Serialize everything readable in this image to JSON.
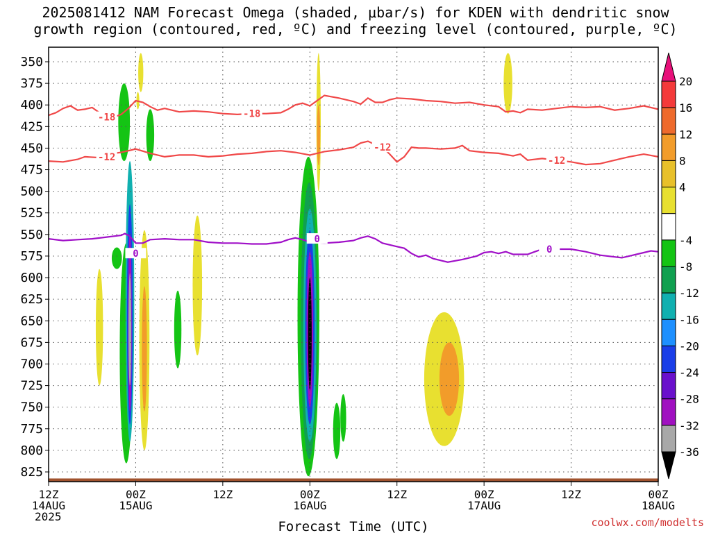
{
  "chart_data": {
    "type": "heatmap",
    "title_lines": [
      "2025081412 NAM Forecast Omega (shaded, μbar/s) for KDEN with dendritic snow",
      "growth region (contoured, red, ºC) and freezing level (contoured, purple, ºC)"
    ],
    "xlabel": "Forecast Time (UTC)",
    "ylabel": "",
    "y_axis": {
      "name": "pressure",
      "ylim": [
        835,
        340
      ],
      "ticks": [
        350,
        375,
        400,
        425,
        450,
        475,
        500,
        525,
        550,
        575,
        600,
        625,
        650,
        675,
        700,
        725,
        750,
        775,
        800,
        825
      ]
    },
    "x_axis": {
      "xlim_hours": [
        0,
        84
      ],
      "ticks": [
        {
          "hour": 0,
          "lines": [
            "12Z",
            "14AUG",
            "2025"
          ]
        },
        {
          "hour": 12,
          "lines": [
            "00Z",
            "15AUG"
          ]
        },
        {
          "hour": 24,
          "lines": [
            "12Z"
          ]
        },
        {
          "hour": 36,
          "lines": [
            "00Z",
            "16AUG"
          ]
        },
        {
          "hour": 48,
          "lines": [
            "12Z"
          ]
        },
        {
          "hour": 60,
          "lines": [
            "00Z",
            "17AUG"
          ]
        },
        {
          "hour": 72,
          "lines": [
            "12Z"
          ]
        },
        {
          "hour": 84,
          "lines": [
            "00Z",
            "18AUG"
          ]
        }
      ],
      "grid": true
    },
    "colorbar": {
      "labels": [
        "20",
        "16",
        "12",
        "8",
        "4",
        "-4",
        "-8",
        "-12",
        "-16",
        "-20",
        "-24",
        "-28",
        "-32",
        "-36"
      ],
      "colors": [
        "#e8107a",
        "#f43a3a",
        "#ee6a2c",
        "#f29c2a",
        "#e8c02a",
        "#e8e030",
        "#ffffff",
        "#14c414",
        "#10a050",
        "#10b0b0",
        "#1e90ff",
        "#1a3ee8",
        "#6a10cc",
        "#a010c0",
        "#a8a8a8",
        "#000000"
      ]
    },
    "contours": [
      {
        "label": "-18",
        "color": "#f04848",
        "points": [
          [
            0,
            412
          ],
          [
            1,
            409
          ],
          [
            2,
            404
          ],
          [
            3,
            401
          ],
          [
            4,
            406
          ],
          [
            5,
            405
          ],
          [
            6,
            403
          ],
          [
            7,
            409
          ],
          [
            8,
            413
          ],
          [
            9,
            414
          ],
          [
            10,
            411
          ],
          [
            11,
            404
          ],
          [
            12,
            395
          ],
          [
            13,
            397
          ],
          [
            14,
            402
          ],
          [
            15,
            406
          ],
          [
            16,
            404
          ],
          [
            18,
            408
          ],
          [
            20,
            407
          ],
          [
            22,
            408
          ],
          [
            24,
            410
          ],
          [
            26,
            411
          ],
          [
            28,
            410
          ],
          [
            30,
            410
          ],
          [
            32,
            409
          ],
          [
            33,
            405
          ],
          [
            34,
            400
          ],
          [
            35,
            398
          ],
          [
            36,
            401
          ],
          [
            37,
            395
          ],
          [
            38,
            389
          ],
          [
            40,
            392
          ],
          [
            42,
            396
          ],
          [
            43,
            399
          ],
          [
            44,
            392
          ],
          [
            45,
            397
          ],
          [
            46,
            397
          ],
          [
            47,
            394
          ],
          [
            48,
            392
          ],
          [
            50,
            393
          ],
          [
            52,
            395
          ],
          [
            54,
            396
          ],
          [
            56,
            398
          ],
          [
            58,
            397
          ],
          [
            60,
            400
          ],
          [
            62,
            402
          ],
          [
            63,
            408
          ],
          [
            64,
            407
          ],
          [
            65,
            409
          ],
          [
            66,
            405
          ],
          [
            68,
            406
          ],
          [
            70,
            404
          ],
          [
            72,
            402
          ],
          [
            74,
            403
          ],
          [
            76,
            402
          ],
          [
            78,
            406
          ],
          [
            80,
            404
          ],
          [
            82,
            401
          ],
          [
            84,
            405
          ]
        ]
      },
      {
        "label": "-12",
        "color": "#f04848",
        "points": [
          [
            0,
            465
          ],
          [
            2,
            466
          ],
          [
            4,
            463
          ],
          [
            5,
            460
          ],
          [
            7,
            461
          ],
          [
            8,
            460
          ],
          [
            9,
            456
          ],
          [
            10,
            455
          ],
          [
            11,
            453
          ],
          [
            12,
            451
          ],
          [
            14,
            456
          ],
          [
            16,
            460
          ],
          [
            18,
            458
          ],
          [
            20,
            458
          ],
          [
            22,
            460
          ],
          [
            24,
            459
          ],
          [
            26,
            457
          ],
          [
            28,
            456
          ],
          [
            30,
            454
          ],
          [
            32,
            453
          ],
          [
            34,
            455
          ],
          [
            36,
            458
          ],
          [
            38,
            454
          ],
          [
            40,
            452
          ],
          [
            42,
            449
          ],
          [
            43,
            444
          ],
          [
            44,
            442
          ],
          [
            45,
            446
          ],
          [
            46,
            449
          ],
          [
            47,
            457
          ],
          [
            48,
            466
          ],
          [
            49,
            460
          ],
          [
            50,
            449
          ],
          [
            51,
            450
          ],
          [
            52,
            450
          ],
          [
            54,
            451
          ],
          [
            56,
            450
          ],
          [
            57,
            447
          ],
          [
            58,
            453
          ],
          [
            60,
            455
          ],
          [
            62,
            456
          ],
          [
            64,
            459
          ],
          [
            65,
            457
          ],
          [
            66,
            464
          ],
          [
            68,
            462
          ],
          [
            70,
            464
          ],
          [
            72,
            466
          ],
          [
            74,
            469
          ],
          [
            76,
            468
          ],
          [
            78,
            464
          ],
          [
            80,
            460
          ],
          [
            82,
            457
          ],
          [
            84,
            460
          ]
        ]
      },
      {
        "label": "0",
        "color": "#a010c8",
        "points": [
          [
            0,
            555
          ],
          [
            2,
            557
          ],
          [
            4,
            556
          ],
          [
            6,
            555
          ],
          [
            8,
            553
          ],
          [
            9,
            552
          ],
          [
            10,
            551
          ],
          [
            10.5,
            549
          ],
          [
            11,
            551
          ],
          [
            11.5,
            555
          ],
          [
            12,
            560
          ],
          [
            13,
            560
          ],
          [
            14,
            556
          ],
          [
            16,
            555
          ],
          [
            18,
            556
          ],
          [
            20,
            556
          ],
          [
            22,
            559
          ],
          [
            24,
            560
          ],
          [
            26,
            560
          ],
          [
            28,
            561
          ],
          [
            30,
            561
          ],
          [
            32,
            559
          ],
          [
            33,
            556
          ],
          [
            34,
            554
          ],
          [
            35,
            556
          ],
          [
            36,
            559
          ],
          [
            38,
            560
          ],
          [
            40,
            559
          ],
          [
            42,
            557
          ],
          [
            43,
            554
          ],
          [
            44,
            552
          ],
          [
            45,
            555
          ],
          [
            46,
            560
          ],
          [
            48,
            564
          ],
          [
            49,
            566
          ],
          [
            50,
            572
          ],
          [
            51,
            576
          ],
          [
            52,
            574
          ],
          [
            53,
            578
          ],
          [
            54,
            580
          ],
          [
            55,
            582
          ],
          [
            57,
            579
          ],
          [
            59,
            575
          ],
          [
            60,
            571
          ],
          [
            61,
            570
          ],
          [
            62,
            572
          ],
          [
            63,
            570
          ],
          [
            64,
            573
          ],
          [
            66,
            573
          ],
          [
            67,
            570
          ],
          [
            68,
            567
          ],
          [
            70,
            567
          ],
          [
            72,
            567
          ],
          [
            74,
            570
          ],
          [
            76,
            574
          ],
          [
            78,
            576
          ],
          [
            79,
            577
          ],
          [
            80,
            575
          ],
          [
            82,
            571
          ],
          [
            83,
            569
          ],
          [
            84,
            570
          ]
        ]
      }
    ],
    "contour_label_positions": [
      {
        "label": "-18",
        "hour": 8,
        "p": 414
      },
      {
        "label": "-18",
        "hour": 28,
        "p": 410
      },
      {
        "label": "-12",
        "hour": 8,
        "p": 460
      },
      {
        "label": "-12",
        "hour": 46,
        "p": 449
      },
      {
        "label": "-12",
        "hour": 70,
        "p": 464
      },
      {
        "label": "0",
        "hour": 12,
        "p": 572
      },
      {
        "label": "0",
        "hour": 37,
        "p": 555
      },
      {
        "label": "0",
        "hour": 69,
        "p": 567
      }
    ],
    "omega_features": [
      {
        "hour": 12.7,
        "width_h": 0.7,
        "p_top": 340,
        "p_bot": 385,
        "color": "#e8e030"
      },
      {
        "hour": 12.3,
        "width_h": 0.4,
        "p_top": 385,
        "p_bot": 405,
        "color": "#e8e030"
      },
      {
        "hour": 10.4,
        "width_h": 1.6,
        "p_top": 375,
        "p_bot": 465,
        "color": "#14c414"
      },
      {
        "hour": 14.0,
        "width_h": 1.1,
        "p_top": 405,
        "p_bot": 465,
        "color": "#14c414"
      },
      {
        "hour": 9.4,
        "width_h": 1.4,
        "p_top": 565,
        "p_bot": 590,
        "color": "#14c414"
      },
      {
        "hour": 10.7,
        "width_h": 1.8,
        "p_top": 560,
        "p_bot": 815,
        "color": "#14c414"
      },
      {
        "hour": 11.2,
        "width_h": 1.2,
        "p_top": 465,
        "p_bot": 790,
        "color": "#10b0b0"
      },
      {
        "hour": 11.2,
        "width_h": 0.8,
        "p_top": 515,
        "p_bot": 770,
        "color": "#1a3ee8"
      },
      {
        "hour": 11.2,
        "width_h": 0.5,
        "p_top": 550,
        "p_bot": 755,
        "color": "#a010c0"
      },
      {
        "hour": 11.2,
        "width_h": 0.25,
        "p_top": 595,
        "p_bot": 725,
        "color": "#a8a8a8"
      },
      {
        "hour": 7.0,
        "width_h": 1.0,
        "p_top": 590,
        "p_bot": 725,
        "color": "#e8e030"
      },
      {
        "hour": 13.2,
        "width_h": 1.4,
        "p_top": 545,
        "p_bot": 800,
        "color": "#e8e030"
      },
      {
        "hour": 13.2,
        "width_h": 0.7,
        "p_top": 610,
        "p_bot": 755,
        "color": "#f29c2a"
      },
      {
        "hour": 17.8,
        "width_h": 1.0,
        "p_top": 615,
        "p_bot": 705,
        "color": "#14c414"
      },
      {
        "hour": 20.5,
        "width_h": 1.3,
        "p_top": 528,
        "p_bot": 690,
        "color": "#e8e030"
      },
      {
        "hour": 35.8,
        "width_h": 3.0,
        "p_top": 460,
        "p_bot": 830,
        "color": "#14c414"
      },
      {
        "hour": 35.9,
        "width_h": 2.3,
        "p_top": 490,
        "p_bot": 810,
        "color": "#10a050"
      },
      {
        "hour": 36.0,
        "width_h": 1.8,
        "p_top": 520,
        "p_bot": 790,
        "color": "#10b0b0"
      },
      {
        "hour": 36.0,
        "width_h": 1.3,
        "p_top": 545,
        "p_bot": 770,
        "color": "#1a3ee8"
      },
      {
        "hour": 36.0,
        "width_h": 0.9,
        "p_top": 570,
        "p_bot": 750,
        "color": "#a010c0"
      },
      {
        "hour": 36.0,
        "width_h": 0.5,
        "p_top": 600,
        "p_bot": 730,
        "color": "#000000"
      },
      {
        "hour": 39.7,
        "width_h": 1.0,
        "p_top": 745,
        "p_bot": 810,
        "color": "#14c414"
      },
      {
        "hour": 40.6,
        "width_h": 0.8,
        "p_top": 735,
        "p_bot": 790,
        "color": "#14c414"
      },
      {
        "hour": 37.2,
        "width_h": 0.6,
        "p_top": 340,
        "p_bot": 500,
        "color": "#e8e030"
      },
      {
        "hour": 37.2,
        "width_h": 0.45,
        "p_top": 400,
        "p_bot": 470,
        "color": "#f29c2a"
      },
      {
        "hour": 54.5,
        "width_h": 5.5,
        "p_top": 640,
        "p_bot": 795,
        "color": "#e8e030"
      },
      {
        "hour": 55.2,
        "width_h": 2.7,
        "p_top": 675,
        "p_bot": 760,
        "color": "#f29c2a"
      },
      {
        "hour": 63.3,
        "width_h": 1.2,
        "p_top": 340,
        "p_bot": 410,
        "color": "#e8e030"
      }
    ],
    "terrain": {
      "color": "#a0522d",
      "p": 835
    }
  },
  "watermark": "coolwx.com/modelts"
}
